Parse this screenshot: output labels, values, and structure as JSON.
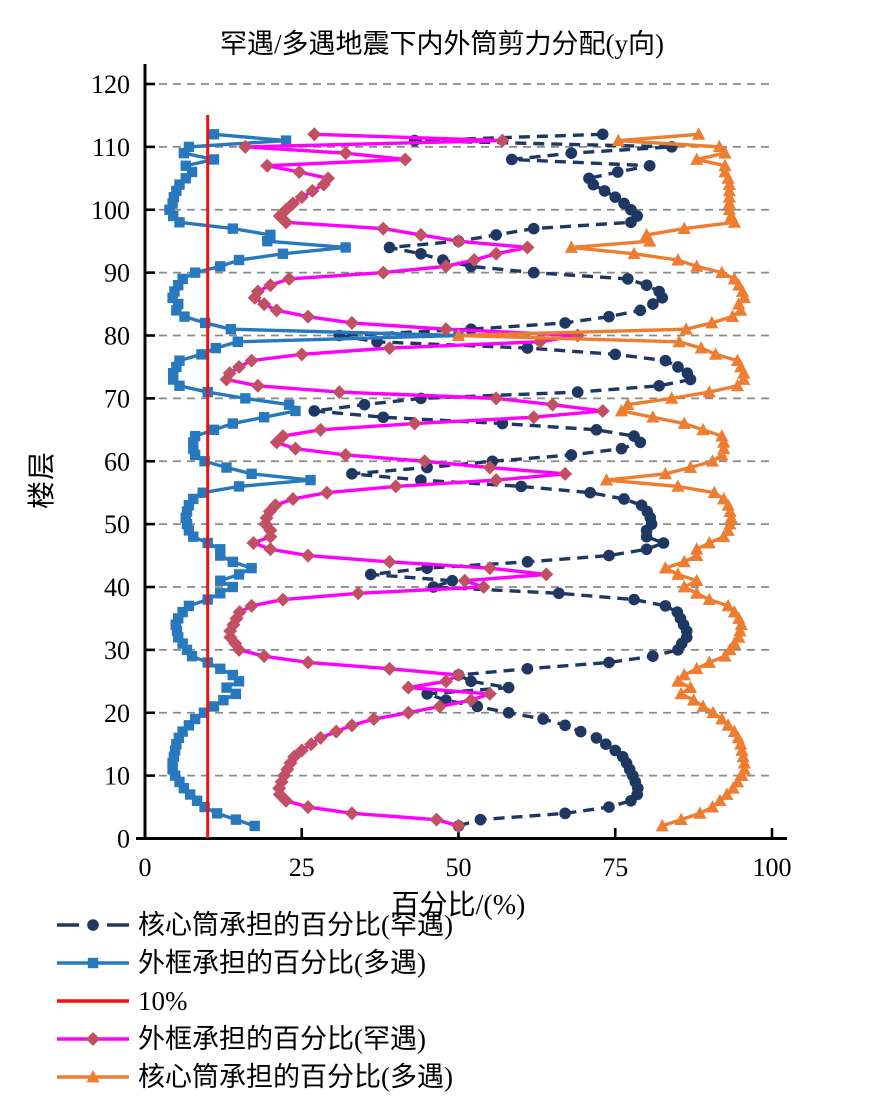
{
  "chart_data": {
    "type": "line",
    "title": "罕遇/多遇地震下内外筒剪力分配(y向)",
    "xlabel": "百分比/(%)",
    "ylabel": "楼层",
    "xlim": [
      0,
      100
    ],
    "ylim": [
      0,
      120
    ],
    "x_ticks": [
      0,
      25,
      50,
      75,
      100
    ],
    "y_ticks": [
      0,
      10,
      20,
      30,
      40,
      50,
      60,
      70,
      80,
      90,
      100,
      110,
      120
    ],
    "grid": "horizontal-dashed",
    "gridline_color": "#8a8a8a",
    "axis_color": "#000000",
    "legend_position": "below-left",
    "floor_range": [
      2,
      112
    ],
    "reference_line": {
      "label": "10%",
      "x": 10,
      "color": "#ee1111"
    },
    "series": [
      {
        "name": "核心筒承担的百分比(罕遇)",
        "color": "#1e3863",
        "marker": "circle",
        "marker_color": "#1e3863",
        "line_style": "dashed",
        "values": [
          50,
          53.5,
          67,
          74,
          77.5,
          78.5,
          78.6,
          78.2,
          77.8,
          77.3,
          76.8,
          76.2,
          75,
          73.5,
          72,
          69.5,
          67,
          63.5,
          58,
          53,
          48,
          45,
          58,
          52,
          50,
          61,
          74,
          81,
          85,
          85.6,
          86.4,
          86.4,
          85.9,
          85.4,
          84.9,
          83,
          78,
          66,
          46,
          49,
          36,
          45,
          61,
          74,
          80,
          82.7,
          80,
          80,
          80.8,
          80.6,
          80.1,
          79.2,
          76.4,
          71,
          60,
          44,
          33,
          45,
          55.4,
          68,
          76,
          79,
          78,
          72,
          57,
          38,
          27,
          35,
          44,
          69,
          82,
          87,
          86.5,
          85,
          83,
          75,
          61,
          37,
          31,
          52,
          67,
          74,
          79,
          81,
          82.5,
          82,
          80,
          77,
          62,
          52,
          47.5,
          44,
          39,
          50,
          56,
          62,
          77.5,
          78.5,
          77.5,
          76.4,
          75,
          73.3,
          71.5,
          70.8,
          75.4,
          80.5,
          58.5,
          68,
          84,
          43,
          73
        ]
      },
      {
        "name": "外框承担的百分比(多遇)",
        "color": "#2878be",
        "marker": "square",
        "marker_color": "#2878be",
        "line_style": "solid",
        "values": [
          17.5,
          14.5,
          11.5,
          9.5,
          8.3,
          7.2,
          6.2,
          5.5,
          4.8,
          4.4,
          4.4,
          4.6,
          4.8,
          5,
          5.4,
          6,
          7,
          8,
          9.4,
          11,
          12.5,
          14.5,
          13,
          15,
          14,
          12,
          10,
          7.5,
          6.7,
          6,
          5.3,
          5.1,
          4.9,
          5.3,
          6,
          7,
          10,
          12,
          14,
          12,
          15,
          17,
          14,
          12,
          12,
          10,
          7.7,
          7,
          6.7,
          6.5,
          6.7,
          7,
          7.7,
          9.2,
          15,
          26.4,
          17,
          13,
          9.5,
          8,
          7.7,
          7.7,
          8,
          11,
          14,
          19,
          24,
          23,
          16,
          10,
          5.5,
          4.5,
          4.5,
          5,
          5.5,
          9,
          11.3,
          14.8,
          50,
          13.7,
          9.6,
          6.3,
          5,
          5.3,
          4.4,
          4.7,
          5.3,
          6,
          8,
          12,
          15,
          22,
          32,
          19.5,
          20,
          14,
          5.5,
          4.5,
          3.9,
          4.4,
          4.6,
          5,
          5.5,
          6.5,
          7.5,
          6.5,
          11,
          6.2,
          7,
          22.5,
          11
        ]
      },
      {
        "name": "外框承担的百分比(罕遇)",
        "color": "#ff00ff",
        "marker": "diamond",
        "marker_color": "#c25064",
        "line_style": "solid",
        "values": [
          50,
          46.5,
          33,
          26,
          22.5,
          21.5,
          21.4,
          21.8,
          22.2,
          22.7,
          23.2,
          23.8,
          25,
          26.5,
          28,
          30.5,
          33,
          36.5,
          42,
          47,
          52,
          55,
          42,
          48,
          50,
          39,
          26,
          19,
          15,
          14.4,
          13.6,
          13.6,
          14.1,
          14.6,
          15.1,
          17,
          22,
          34,
          54,
          51,
          64,
          55,
          39,
          26,
          20,
          17.3,
          20,
          20,
          19.2,
          19.4,
          19.9,
          20.8,
          23.6,
          29,
          40,
          56,
          67,
          55,
          44.6,
          32,
          24,
          21,
          22,
          28,
          43,
          62,
          73,
          65,
          56,
          31,
          18,
          13,
          13.5,
          15,
          17,
          25,
          39,
          63,
          69,
          48,
          33,
          26,
          21,
          19,
          17.5,
          18,
          20,
          23,
          38,
          48,
          52.5,
          56,
          61,
          50,
          44,
          38,
          22.5,
          21.5,
          22.5,
          23.6,
          25,
          26.7,
          28.5,
          29.2,
          24.6,
          19.5,
          41.5,
          32,
          16,
          57,
          27
        ]
      },
      {
        "name": "核心筒承担的百分比(多遇)",
        "color": "#ed7d31",
        "marker": "triangle",
        "marker_color": "#ed7d31",
        "line_style": "solid",
        "values": [
          82.5,
          85.5,
          88.5,
          90.5,
          91.7,
          92.8,
          93.8,
          94.5,
          95.2,
          95.6,
          95.6,
          95.4,
          95.2,
          95,
          94.6,
          94,
          93,
          92,
          90.6,
          89,
          87.5,
          85.5,
          87,
          85,
          86,
          88,
          90,
          92.5,
          93.3,
          94,
          94.7,
          94.9,
          95.1,
          94.7,
          94,
          93,
          90,
          88,
          86,
          88,
          85,
          83,
          86,
          88,
          88,
          90,
          92.3,
          93,
          93.3,
          93.5,
          93.3,
          93,
          92.3,
          90.8,
          85,
          73.6,
          83,
          87,
          90.5,
          92,
          92.3,
          92.3,
          92,
          89,
          86,
          81,
          76,
          77,
          84,
          90,
          94.5,
          95.5,
          95.5,
          95,
          94.5,
          91,
          88.7,
          85.2,
          50,
          86.3,
          90.4,
          93.7,
          95,
          94.7,
          95.6,
          95.3,
          94.7,
          94,
          92,
          88,
          85,
          78,
          68,
          80.5,
          80,
          86,
          94,
          93.5,
          93.2,
          93.2,
          93.2,
          93.2,
          93.2,
          93,
          92.5,
          92.5,
          88,
          92.5,
          91.6,
          75.5,
          88.3
        ]
      }
    ]
  },
  "legend": {
    "items": [
      {
        "label": "核心筒承担的百分比(罕遇)",
        "color": "#1e3863",
        "marker": "circle",
        "marker_color": "#1e3863",
        "dash": true
      },
      {
        "label": "外框承担的百分比(多遇)",
        "color": "#2878be",
        "marker": "square",
        "marker_color": "#2878be",
        "dash": false
      },
      {
        "label": "10%",
        "color": "#ee1111",
        "marker": "none",
        "marker_color": "#ee1111",
        "dash": false
      },
      {
        "label": "外框承担的百分比(罕遇)",
        "color": "#ff00ff",
        "marker": "diamond",
        "marker_color": "#c25064",
        "dash": false
      },
      {
        "label": "核心筒承担的百分比(多遇)",
        "color": "#ed7d31",
        "marker": "triangle",
        "marker_color": "#ed7d31",
        "dash": false
      }
    ]
  }
}
